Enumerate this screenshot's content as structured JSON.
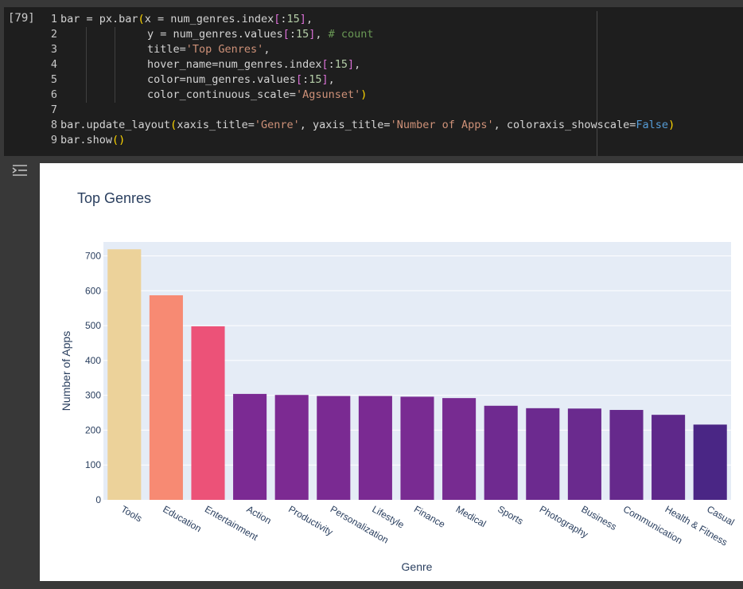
{
  "cell": {
    "execution_count": "[79]",
    "line_numbers": [
      "1",
      "2",
      "3",
      "4",
      "5",
      "6",
      "7",
      "8",
      "9"
    ]
  },
  "code": {
    "line1": {
      "a": "bar = px.bar",
      "p1": "(",
      "b": "x = num_genres.index",
      "p2": "[",
      "c": ":",
      "n": "15",
      "p3": "]",
      "d": ","
    },
    "line2": {
      "a": "y = num_genres.values",
      "p1": "[",
      "c": ":",
      "n": "15",
      "p2": "]",
      "d": ", ",
      "comment": "# count"
    },
    "line3": {
      "a": "title=",
      "s": "'Top Genres'",
      "d": ","
    },
    "line4": {
      "a": "hover_name=num_genres.index",
      "p1": "[",
      "c": ":",
      "n": "15",
      "p2": "]",
      "d": ","
    },
    "line5": {
      "a": "color=num_genres.values",
      "p1": "[",
      "c": ":",
      "n": "15",
      "p2": "]",
      "d": ","
    },
    "line6": {
      "a": "color_continuous_scale=",
      "s": "'Agsunset'",
      "p": ")"
    },
    "line8": {
      "a": "bar.update_layout",
      "p1": "(",
      "b": "xaxis_title=",
      "s1": "'Genre'",
      "c": ", yaxis_title=",
      "s2": "'Number of Apps'",
      "d": ", coloraxis_showscale=",
      "bool": "False",
      "p2": ")"
    },
    "line9": {
      "a": "bar.show",
      "p": "()"
    }
  },
  "icons": {
    "output_toggle": "output-collapse-icon"
  },
  "chart_data": {
    "type": "bar",
    "title": "Top Genres",
    "xlabel": "Genre",
    "ylabel": "Number of Apps",
    "categories": [
      "Tools",
      "Education",
      "Entertainment",
      "Action",
      "Productivity",
      "Personalization",
      "Lifestyle",
      "Finance",
      "Medical",
      "Sports",
      "Photography",
      "Business",
      "Communication",
      "Health & Fitness",
      "Casual"
    ],
    "values": [
      719,
      587,
      498,
      304,
      301,
      298,
      298,
      296,
      292,
      270,
      263,
      262,
      258,
      244,
      216
    ],
    "colors": [
      "#ecd29a",
      "#f78a73",
      "#ec5278",
      "#7b2a93",
      "#7c2a92",
      "#7a2a92",
      "#7a2a92",
      "#792b92",
      "#772b91",
      "#6f2a90",
      "#6c2a8f",
      "#6a2a8e",
      "#66298c",
      "#5e288a",
      "#4a2685"
    ],
    "ylim": [
      0,
      740
    ],
    "yticks": [
      0,
      100,
      200,
      300,
      400,
      500,
      600,
      700
    ],
    "grid": true,
    "plot_bg": "#e5ecf6"
  }
}
